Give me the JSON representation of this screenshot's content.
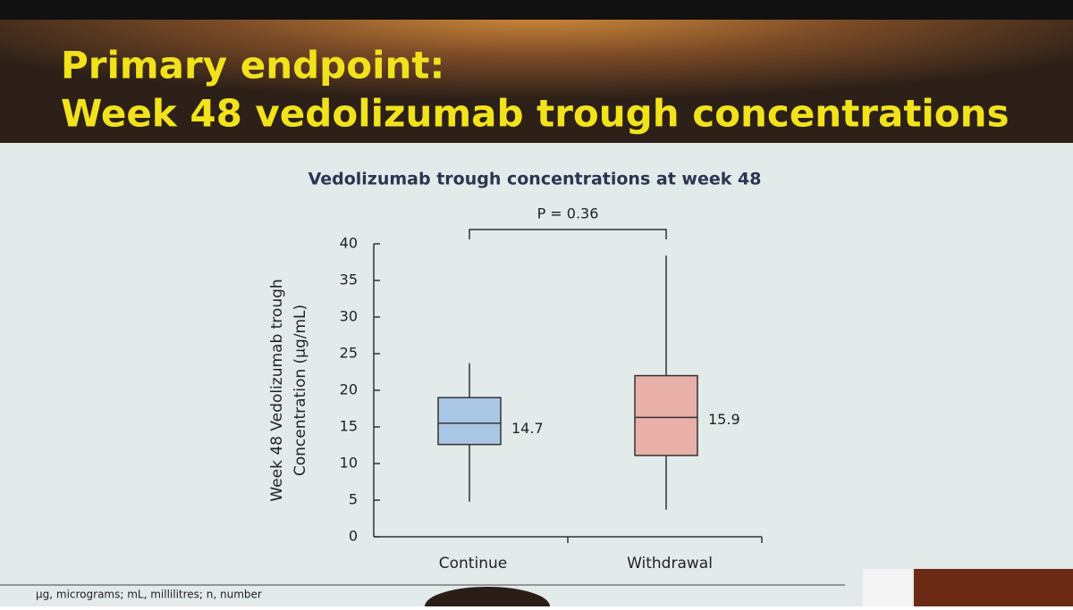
{
  "slide": {
    "title_lines": [
      "Primary endpoint:",
      "Week 48 vedolizumab trough concentrations"
    ],
    "footnote": "µg, micrograms; mL, millilitres; n, number"
  },
  "chart_data": {
    "type": "box",
    "title": "Vedolizumab trough concentrations at week 48",
    "y_label_lines": [
      "Week 48 Vedolizumab trough",
      "Concentration (µg/mL)"
    ],
    "categories": [
      "Continue",
      "Withdrawal"
    ],
    "min": [
      4.8,
      3.7
    ],
    "q1": [
      12.6,
      11.1
    ],
    "median": [
      15.5,
      16.3
    ],
    "q3": [
      19.0,
      22.0
    ],
    "max": [
      23.7,
      38.4
    ],
    "labels": [
      14.7,
      15.9
    ],
    "colors": [
      "#a9c7e4",
      "#e9b0a8"
    ],
    "annotation": "P = 0.36",
    "ylim": [
      0,
      40
    ],
    "yticks": [
      0,
      5,
      10,
      15,
      20,
      25,
      30,
      35,
      40
    ]
  }
}
